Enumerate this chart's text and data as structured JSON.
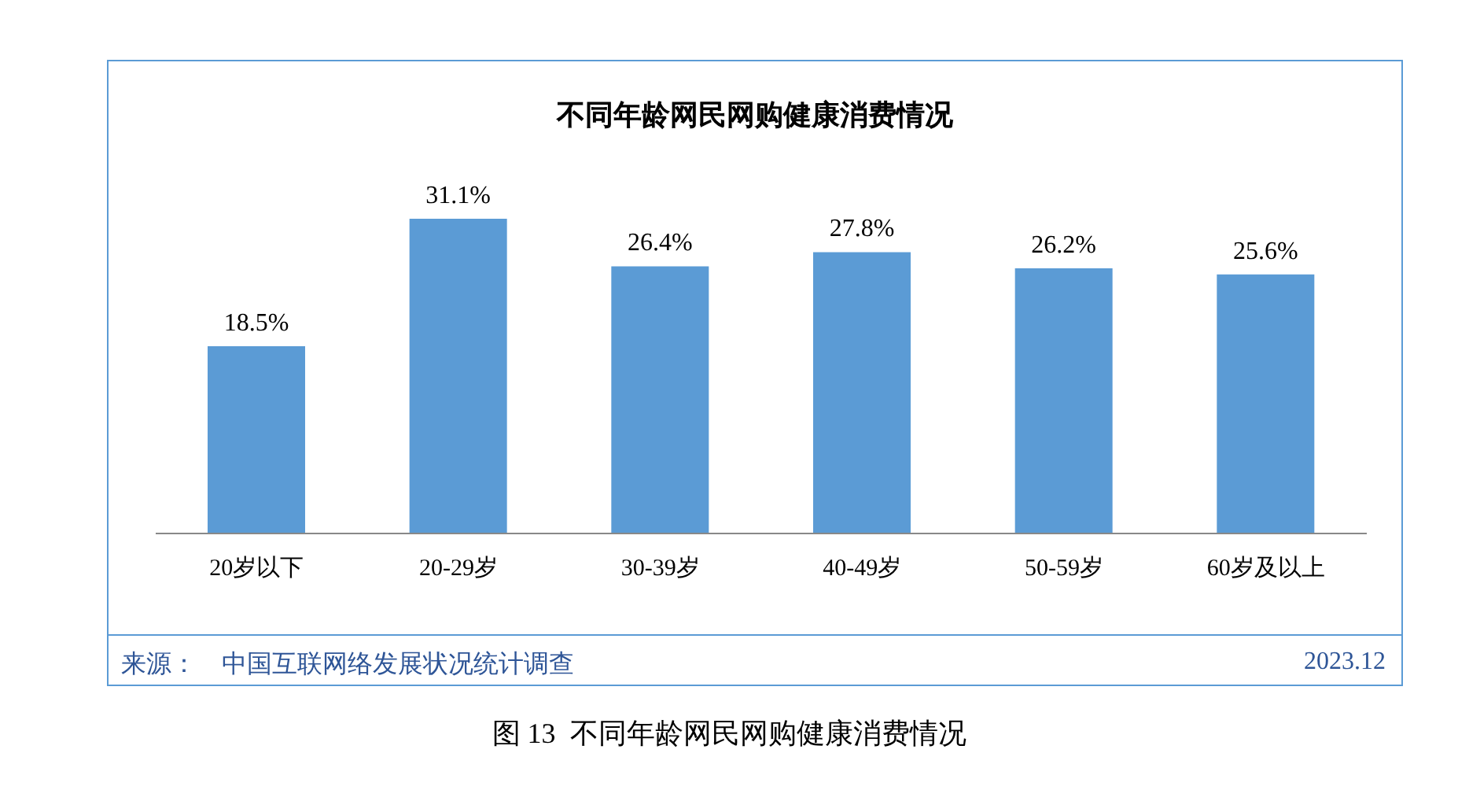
{
  "chart_data": {
    "type": "bar",
    "title": "不同年龄网民网购健康消费情况",
    "categories": [
      "20岁以下",
      "20-29岁",
      "30-39岁",
      "40-49岁",
      "50-59岁",
      "60岁及以上"
    ],
    "values": [
      18.5,
      31.1,
      26.4,
      27.8,
      26.2,
      25.6
    ],
    "value_labels": [
      "18.5%",
      "31.1%",
      "26.4%",
      "27.8%",
      "26.2%",
      "25.6%"
    ],
    "color": "#5b9bd5",
    "grid": false,
    "legend": false,
    "annotations": [
      "来源：",
      "中国互联网络发展状况统计调查",
      "2023.12",
      "图 13  不同年龄网民网购健康消费情况"
    ]
  }
}
